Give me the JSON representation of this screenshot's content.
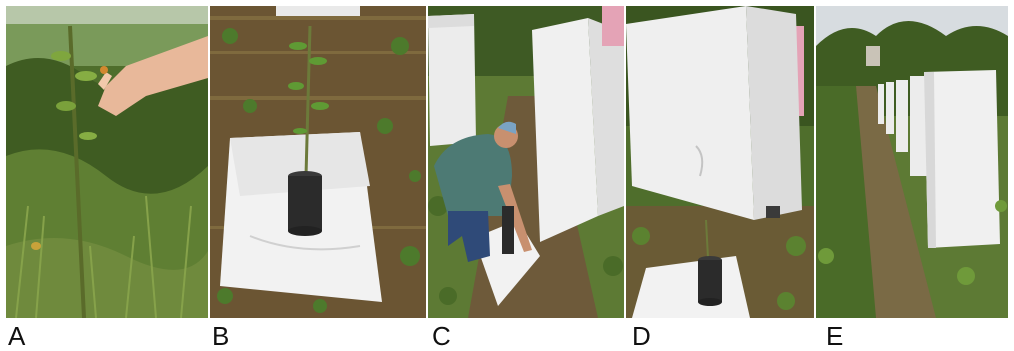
{
  "panels": [
    {
      "label": "A"
    },
    {
      "label": "B"
    },
    {
      "label": "C"
    },
    {
      "label": "D"
    },
    {
      "label": "E"
    }
  ],
  "colors": {
    "grass_dark": "#3e5a24",
    "grass_mid": "#5d7a34",
    "soil": "#6b5533",
    "sheet_white": "#f2f2f2",
    "cage_white": "#ededed",
    "sky": "#d7dce0",
    "pot_black": "#2b2b2b",
    "skin": "#e8b89a",
    "shirt_teal": "#4d7a74",
    "jeans": "#2f4a78"
  }
}
